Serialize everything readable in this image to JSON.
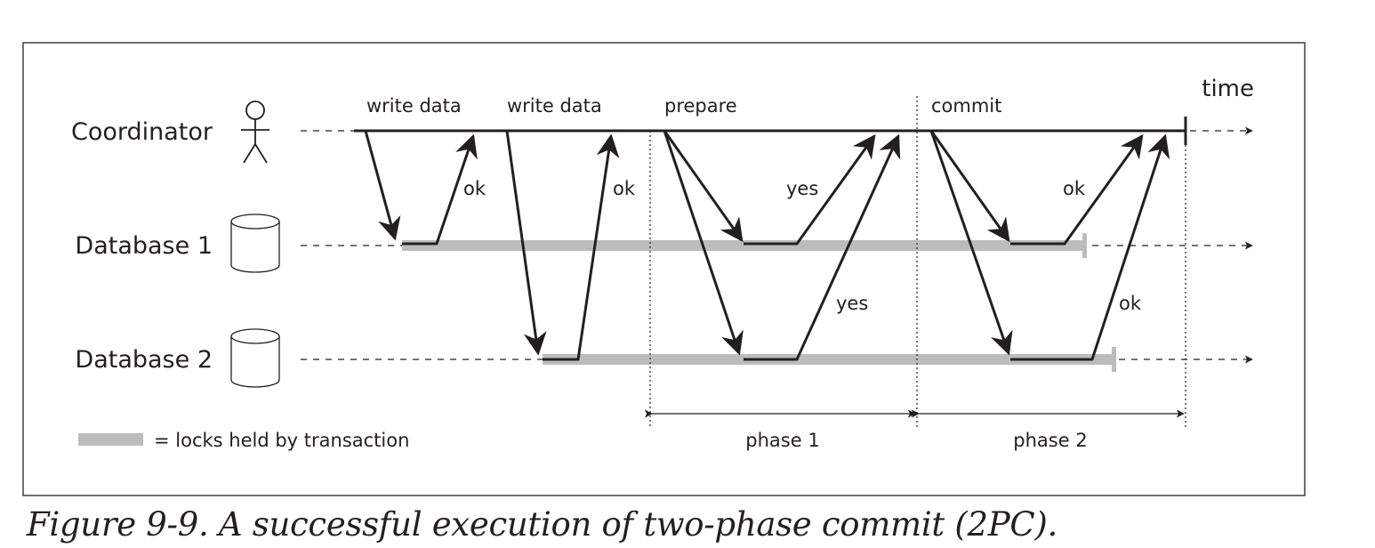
{
  "diagram": {
    "time_label": "time",
    "participants": {
      "coordinator": "Coordinator",
      "db1": "Database 1",
      "db2": "Database 2"
    },
    "coordinator_messages": {
      "write_data_1": "write data",
      "write_data_2": "write data",
      "prepare": "prepare",
      "commit": "commit"
    },
    "replies": {
      "ok_db1_write": "ok",
      "ok_db2_write": "ok",
      "yes_db1": "yes",
      "yes_db2": "yes",
      "ok_db1_commit": "ok",
      "ok_db2_commit": "ok"
    },
    "phases": {
      "phase1": "phase 1",
      "phase2": "phase 2"
    },
    "legend": {
      "locks": "= locks held by transaction",
      "lock_color": "#bcbcbc"
    }
  },
  "caption": "Figure 9-9. A successful execution of two-phase commit (2PC)."
}
